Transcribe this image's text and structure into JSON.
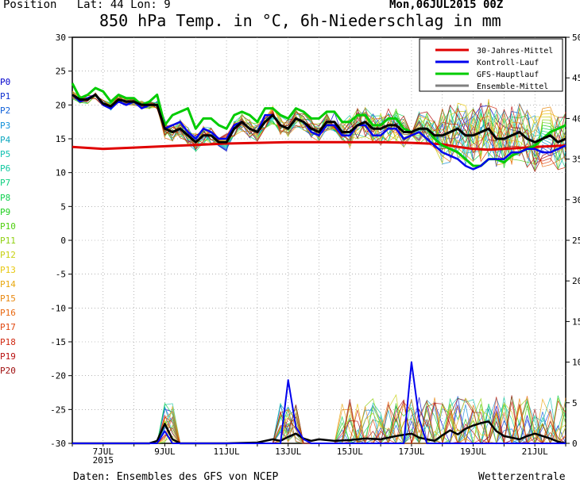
{
  "header": {
    "position_label": "Position   Lat: 44 Lon: 9",
    "run_date": "Mon,06JUL2015 00Z",
    "title": "850 hPa Temp. in °C, 6h-Niederschlag in mm"
  },
  "footer": {
    "source": "Daten: Ensembles des GFS von NCEP",
    "brand": "Wetterzentrale"
  },
  "member_labels": [
    {
      "label": "P0",
      "color": "#0000cc"
    },
    {
      "label": "P1",
      "color": "#1030d0"
    },
    {
      "label": "P2",
      "color": "#1060d8"
    },
    {
      "label": "P3",
      "color": "#1090d8"
    },
    {
      "label": "P4",
      "color": "#10a8c0"
    },
    {
      "label": "P5",
      "color": "#10c0b0"
    },
    {
      "label": "P6",
      "color": "#10c8a0"
    },
    {
      "label": "P7",
      "color": "#10d080"
    },
    {
      "label": "P8",
      "color": "#10d050"
    },
    {
      "label": "P9",
      "color": "#20d020"
    },
    {
      "label": "P10",
      "color": "#50d010"
    },
    {
      "label": "P11",
      "color": "#90d010"
    },
    {
      "label": "P12",
      "color": "#c8d010"
    },
    {
      "label": "P13",
      "color": "#e8c810"
    },
    {
      "label": "P14",
      "color": "#e8a810"
    },
    {
      "label": "P15",
      "color": "#e88810"
    },
    {
      "label": "P16",
      "color": "#e86810"
    },
    {
      "label": "P17",
      "color": "#e04810"
    },
    {
      "label": "P18",
      "color": "#d02810"
    },
    {
      "label": "P19",
      "color": "#b81010"
    },
    {
      "label": "P20",
      "color": "#a01010"
    }
  ],
  "chart_data": {
    "type": "line",
    "title": "850 hPa Temp. in °C, 6h-Niederschlag in mm",
    "y_left": {
      "label": "850 hPa Temp. (°C)",
      "range": [
        -30,
        30
      ],
      "ticks": [
        30,
        25,
        20,
        15,
        10,
        5,
        0,
        -5,
        -10,
        -15,
        -20,
        -25,
        -30
      ]
    },
    "y_right": {
      "label": "6h-Niederschlag (mm)",
      "range": [
        0,
        50
      ],
      "ticks": [
        50,
        45,
        40,
        35,
        30,
        25,
        20,
        15,
        10,
        5,
        0
      ]
    },
    "x_ticks": [
      {
        "label": "7JUL",
        "sub": "2015",
        "day": 7
      },
      {
        "label": "9JUL",
        "sub": "",
        "day": 9
      },
      {
        "label": "11JUL",
        "sub": "",
        "day": 11
      },
      {
        "label": "13JUL",
        "sub": "",
        "day": 13
      },
      {
        "label": "15JUL",
        "sub": "",
        "day": 15
      },
      {
        "label": "17JUL",
        "sub": "",
        "day": 17
      },
      {
        "label": "19JUL",
        "sub": "",
        "day": 19
      },
      {
        "label": "21JUL",
        "sub": "",
        "day": 21
      }
    ],
    "x_range_days": [
      6.0,
      22.0
    ],
    "grid": true,
    "legend_position": "top-right",
    "legend": [
      {
        "name": "30-Jahres-Mittel",
        "color": "#e00000"
      },
      {
        "name": "Kontroll-Lauf",
        "color": "#0000ee"
      },
      {
        "name": "GFS-Hauptlauf",
        "color": "#00cc00"
      },
      {
        "name": "Ensemble-Mittel",
        "color": "#808080"
      }
    ],
    "series_temp": [
      {
        "name": "30-Jahres-Mittel",
        "color": "#e00000",
        "width": 3,
        "x": [
          6.0,
          7.0,
          8.0,
          9.0,
          10.0,
          11.0,
          12.0,
          13.0,
          14.0,
          15.0,
          16.0,
          17.0,
          18.0,
          18.5,
          19.0,
          19.5,
          20.0,
          21.0,
          22.0
        ],
        "y": [
          13.8,
          13.5,
          13.7,
          13.9,
          14.1,
          14.3,
          14.4,
          14.5,
          14.5,
          14.5,
          14.5,
          14.4,
          14.2,
          13.8,
          13.5,
          13.4,
          13.5,
          13.8,
          14.0
        ]
      },
      {
        "name": "GFS-Hauptlauf",
        "color": "#00cc00",
        "width": 3,
        "x": [
          6.0,
          6.25,
          6.5,
          6.75,
          7.0,
          7.25,
          7.5,
          7.75,
          8.0,
          8.25,
          8.5,
          8.75,
          9.0,
          9.25,
          9.5,
          9.75,
          10.0,
          10.25,
          10.5,
          10.75,
          11.0,
          11.25,
          11.5,
          11.75,
          12.0,
          12.25,
          12.5,
          12.75,
          13.0,
          13.25,
          13.5,
          13.75,
          14.0,
          14.25,
          14.5,
          14.75,
          15.0,
          15.25,
          15.5,
          15.75,
          16.0,
          16.25,
          16.5,
          16.75,
          17.0,
          17.25,
          17.5,
          17.75,
          18.0,
          18.25,
          18.5,
          18.75,
          19.0,
          19.25,
          19.5,
          19.75,
          20.0,
          20.25,
          20.5,
          20.75,
          21.0,
          21.25,
          21.5,
          21.75,
          22.0
        ],
        "y": [
          23.2,
          21.0,
          21.5,
          22.5,
          22.0,
          20.5,
          21.5,
          21.0,
          21.0,
          20.0,
          20.5,
          21.5,
          17.0,
          18.5,
          19.0,
          19.5,
          16.5,
          18.0,
          18.0,
          17.0,
          16.5,
          18.5,
          19.0,
          18.5,
          17.5,
          19.5,
          19.5,
          18.5,
          18.0,
          19.5,
          19.0,
          18.0,
          18.0,
          19.0,
          19.0,
          17.5,
          17.5,
          18.5,
          18.5,
          17.0,
          17.0,
          18.0,
          18.0,
          16.5,
          16.0,
          16.5,
          16.5,
          15.0,
          14.0,
          13.5,
          13.0,
          12.0,
          11.0,
          11.0,
          12.0,
          12.0,
          11.5,
          12.5,
          13.0,
          13.5,
          14.0,
          15.0,
          16.0,
          16.5,
          17.0
        ]
      },
      {
        "name": "Kontroll-Lauf",
        "color": "#0000ee",
        "width": 2.5,
        "x": [
          6.0,
          6.25,
          6.5,
          6.75,
          7.0,
          7.25,
          7.5,
          7.75,
          8.0,
          8.25,
          8.5,
          8.75,
          9.0,
          9.25,
          9.5,
          9.75,
          10.0,
          10.25,
          10.5,
          10.75,
          11.0,
          11.25,
          11.5,
          11.75,
          12.0,
          12.25,
          12.5,
          12.75,
          13.0,
          13.25,
          13.5,
          13.75,
          14.0,
          14.25,
          14.5,
          14.75,
          15.0,
          15.25,
          15.5,
          15.75,
          16.0,
          16.25,
          16.5,
          16.75,
          17.0,
          17.25,
          17.5,
          17.75,
          18.0,
          18.25,
          18.5,
          18.75,
          19.0,
          19.25,
          19.5,
          19.75,
          20.0,
          20.25,
          20.5,
          20.75,
          21.0,
          21.25,
          21.5,
          21.75,
          22.0
        ],
        "y": [
          21.5,
          20.5,
          21.0,
          21.5,
          20.0,
          19.5,
          20.5,
          20.0,
          20.5,
          19.5,
          20.0,
          20.0,
          16.5,
          17.0,
          17.5,
          16.0,
          15.0,
          16.5,
          16.0,
          15.0,
          15.0,
          17.0,
          17.5,
          16.5,
          16.0,
          18.5,
          18.5,
          17.0,
          16.5,
          18.0,
          17.5,
          16.0,
          15.5,
          17.0,
          17.0,
          15.5,
          15.5,
          17.0,
          17.0,
          15.5,
          15.5,
          16.5,
          16.5,
          15.0,
          15.5,
          16.0,
          15.0,
          14.0,
          13.0,
          12.5,
          12.0,
          11.0,
          10.5,
          11.0,
          12.0,
          12.0,
          12.0,
          13.0,
          13.0,
          13.5,
          13.5,
          13.0,
          13.0,
          13.5,
          14.0
        ]
      },
      {
        "name": "Ensemble-Mittel",
        "color": "#000000",
        "width": 3,
        "x": [
          6.0,
          6.25,
          6.5,
          6.75,
          7.0,
          7.25,
          7.5,
          7.75,
          8.0,
          8.25,
          8.5,
          8.75,
          9.0,
          9.25,
          9.5,
          9.75,
          10.0,
          10.25,
          10.5,
          10.75,
          11.0,
          11.25,
          11.5,
          11.75,
          12.0,
          12.25,
          12.5,
          12.75,
          13.0,
          13.25,
          13.5,
          13.75,
          14.0,
          14.25,
          14.5,
          14.75,
          15.0,
          15.25,
          15.5,
          15.75,
          16.0,
          16.25,
          16.5,
          16.75,
          17.0,
          17.25,
          17.5,
          17.75,
          18.0,
          18.25,
          18.5,
          18.75,
          19.0,
          19.25,
          19.5,
          19.75,
          20.0,
          20.25,
          20.5,
          20.75,
          21.0,
          21.25,
          21.5,
          21.75,
          22.0
        ],
        "y": [
          21.5,
          20.8,
          20.8,
          21.5,
          20.2,
          19.8,
          20.8,
          20.5,
          20.5,
          20.0,
          20.0,
          20.0,
          16.5,
          16.0,
          16.5,
          15.5,
          14.5,
          15.5,
          15.5,
          14.5,
          14.5,
          16.5,
          17.5,
          16.5,
          16.0,
          17.5,
          18.5,
          17.0,
          16.5,
          18.0,
          17.5,
          16.5,
          16.0,
          17.5,
          17.5,
          16.0,
          16.0,
          17.0,
          17.5,
          16.5,
          16.5,
          17.0,
          17.0,
          16.0,
          16.0,
          16.5,
          16.5,
          15.5,
          15.5,
          16.0,
          16.5,
          15.5,
          15.5,
          16.0,
          16.5,
          15.0,
          15.0,
          15.5,
          16.0,
          15.0,
          14.5,
          15.0,
          15.5,
          14.5,
          15.0
        ]
      }
    ],
    "series_precip": [
      {
        "name": "Ensemble-Mittel",
        "color": "#000000",
        "width": 2.5,
        "x": [
          6.0,
          7.0,
          8.5,
          8.75,
          9.0,
          9.25,
          9.5,
          10.0,
          11.0,
          12.0,
          12.5,
          12.75,
          13.0,
          13.25,
          13.5,
          13.75,
          14.0,
          14.5,
          15.0,
          15.5,
          16.0,
          16.5,
          17.0,
          17.25,
          17.5,
          17.75,
          18.0,
          18.25,
          18.5,
          18.75,
          19.0,
          19.25,
          19.5,
          19.75,
          20.0,
          20.25,
          20.5,
          20.75,
          21.0,
          21.25,
          21.5,
          21.75,
          22.0
        ],
        "y": [
          0.0,
          0.0,
          0.0,
          0.3,
          2.4,
          0.5,
          0.0,
          0.0,
          0.0,
          0.1,
          0.5,
          0.3,
          0.8,
          1.2,
          0.6,
          0.3,
          0.5,
          0.3,
          0.4,
          0.6,
          0.5,
          0.9,
          1.2,
          0.7,
          0.5,
          0.3,
          1.0,
          1.6,
          1.1,
          1.8,
          2.2,
          2.5,
          2.7,
          1.5,
          0.9,
          0.7,
          0.5,
          0.9,
          1.2,
          0.9,
          0.6,
          0.2,
          0.0
        ]
      },
      {
        "name": "Kontroll-Lauf",
        "color": "#0000ee",
        "width": 2,
        "x": [
          6.0,
          8.75,
          9.0,
          9.25,
          12.75,
          13.0,
          13.25,
          13.5,
          13.75,
          16.75,
          17.0,
          17.25,
          17.5,
          22.0
        ],
        "y": [
          0.0,
          0.0,
          1.5,
          0.0,
          0.0,
          7.8,
          2.0,
          0.5,
          0.0,
          0.0,
          10.0,
          3.0,
          0.0,
          0.0
        ]
      }
    ]
  }
}
